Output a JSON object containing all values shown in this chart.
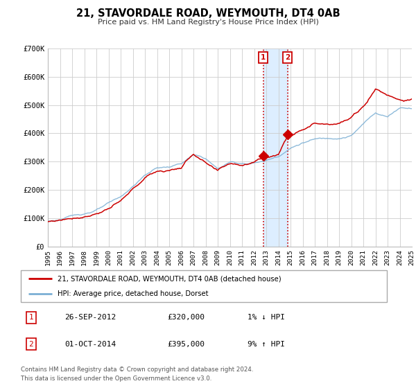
{
  "title": "21, STAVORDALE ROAD, WEYMOUTH, DT4 0AB",
  "subtitle": "Price paid vs. HM Land Registry's House Price Index (HPI)",
  "background_color": "#ffffff",
  "plot_bg_color": "#ffffff",
  "grid_color": "#cccccc",
  "hpi_line_color": "#7bafd4",
  "price_line_color": "#cc0000",
  "transaction1_date": "26-SEP-2012",
  "transaction1_price": 320000,
  "transaction1_note": "1% ↓ HPI",
  "transaction2_date": "01-OCT-2014",
  "transaction2_price": 395000,
  "transaction2_note": "9% ↑ HPI",
  "transaction1_x": 2012.75,
  "transaction2_x": 2014.75,
  "shade_color": "#ddeeff",
  "ylim": [
    0,
    700000
  ],
  "xlim": [
    1995,
    2025
  ],
  "yticks": [
    0,
    100000,
    200000,
    300000,
    400000,
    500000,
    600000,
    700000
  ],
  "ytick_labels": [
    "£0",
    "£100K",
    "£200K",
    "£300K",
    "£400K",
    "£500K",
    "£600K",
    "£700K"
  ],
  "xticks": [
    1995,
    1996,
    1997,
    1998,
    1999,
    2000,
    2001,
    2002,
    2003,
    2004,
    2005,
    2006,
    2007,
    2008,
    2009,
    2010,
    2011,
    2012,
    2013,
    2014,
    2015,
    2016,
    2017,
    2018,
    2019,
    2020,
    2021,
    2022,
    2023,
    2024,
    2025
  ],
  "legend1_label": "21, STAVORDALE ROAD, WEYMOUTH, DT4 0AB (detached house)",
  "legend2_label": "HPI: Average price, detached house, Dorset",
  "footer1": "Contains HM Land Registry data © Crown copyright and database right 2024.",
  "footer2": "This data is licensed under the Open Government Licence v3.0."
}
